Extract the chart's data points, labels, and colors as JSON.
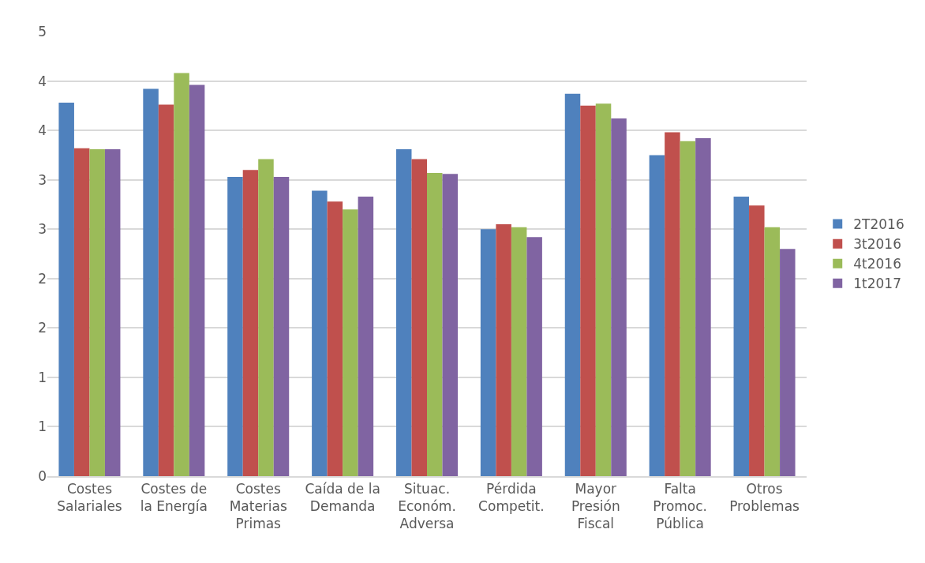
{
  "chart_data": {
    "type": "bar",
    "categories": [
      "Costes Salariales",
      "Costes de la Energía",
      "Costes Materias Primas",
      "Caída de la Demanda",
      "Situac. Económ. Adversa",
      "Pérdida Competit.",
      "Mayor Presión Fiscal",
      "Falta Promoc. Pública",
      "Otros Problemas"
    ],
    "series": [
      {
        "name": "2T2016",
        "color": "#4f81bd",
        "values": [
          3.78,
          3.92,
          3.03,
          2.89,
          3.31,
          2.5,
          3.87,
          3.25,
          2.83
        ]
      },
      {
        "name": "3t2016",
        "color": "#c0504d",
        "values": [
          3.32,
          3.76,
          3.1,
          2.78,
          3.21,
          2.55,
          3.75,
          3.48,
          2.74
        ]
      },
      {
        "name": "4t2016",
        "color": "#9bbb59",
        "values": [
          3.31,
          4.08,
          3.21,
          2.7,
          3.07,
          2.52,
          3.77,
          3.39,
          2.52
        ]
      },
      {
        "name": "1t2017",
        "color": "#8064a2",
        "values": [
          3.31,
          3.96,
          3.03,
          2.83,
          3.06,
          2.42,
          3.62,
          3.42,
          2.3
        ]
      }
    ],
    "ylim": [
      0,
      4.5
    ],
    "yticks": [
      0,
      {
        "value": 0.5,
        "label": "1"
      },
      1,
      {
        "value": 1.5,
        "label": "2"
      },
      2,
      {
        "value": 2.5,
        "label": "3"
      },
      3,
      {
        "value": 3.5,
        "label": "4"
      },
      4,
      {
        "value": 4.5,
        "label": "5"
      }
    ],
    "grid": "y",
    "legend": "right"
  }
}
